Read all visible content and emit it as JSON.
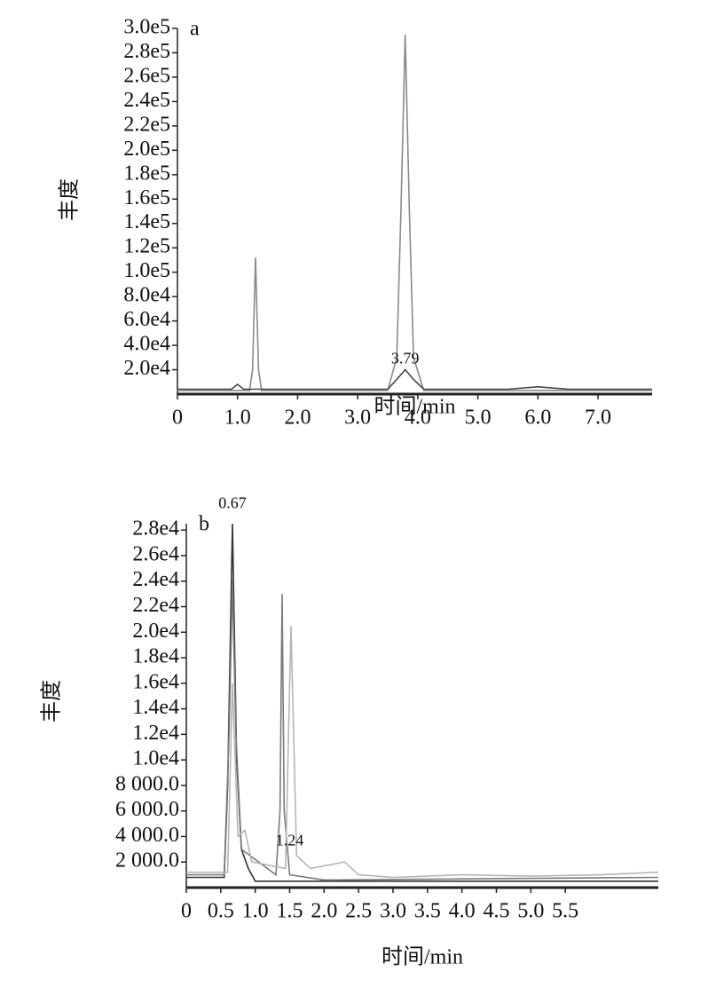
{
  "chart_data": [
    {
      "type": "line",
      "panel_label": "a",
      "xlabel": "时间/min",
      "ylabel": "丰度",
      "xlim": [
        0,
        7.9
      ],
      "ylim": [
        0,
        300000
      ],
      "xticks": [
        0,
        {
          "value": 1,
          "label": "1.0"
        },
        {
          "value": 2,
          "label": "2.0"
        },
        {
          "value": 3,
          "label": "3.0"
        },
        {
          "value": 4,
          "label": "4.0"
        },
        {
          "value": 5,
          "label": "5.0"
        },
        {
          "value": 6,
          "label": "6.0"
        },
        {
          "value": 7,
          "label": "7.0"
        }
      ],
      "yticks": [
        {
          "value": 20000,
          "label": "2.0e4"
        },
        {
          "value": 40000,
          "label": "4.0e4"
        },
        {
          "value": 60000,
          "label": "6.0e4"
        },
        {
          "value": 80000,
          "label": "8.0e4"
        },
        {
          "value": 100000,
          "label": "1.0e5"
        },
        {
          "value": 120000,
          "label": "1.2e5"
        },
        {
          "value": 140000,
          "label": "1.4e5"
        },
        {
          "value": 160000,
          "label": "1.6e5"
        },
        {
          "value": 180000,
          "label": "1.8e5"
        },
        {
          "value": 200000,
          "label": "2.0e5"
        },
        {
          "value": 220000,
          "label": "2.2e5"
        },
        {
          "value": 240000,
          "label": "2.4e5"
        },
        {
          "value": 260000,
          "label": "2.6e5"
        },
        {
          "value": 280000,
          "label": "2.8e5"
        },
        {
          "value": 300000,
          "label": "3.0e5"
        }
      ],
      "series": [
        {
          "color": "#8a8a8a",
          "x": [
            0,
            1.2,
            1.25,
            1.3,
            1.35,
            1.4,
            3.5,
            3.65,
            3.72,
            3.79,
            3.86,
            3.93,
            4.1,
            7.9
          ],
          "values": [
            3000,
            3000,
            20000,
            112000,
            20000,
            3000,
            3000,
            30000,
            150000,
            295000,
            150000,
            30000,
            3000,
            3000
          ]
        },
        {
          "color": "#444444",
          "x": [
            0,
            0.9,
            1.0,
            1.1,
            3.5,
            3.65,
            3.79,
            3.93,
            4.1,
            5.5,
            6.0,
            6.5,
            7.9
          ],
          "values": [
            4000,
            4000,
            8000,
            4000,
            4000,
            12000,
            20000,
            12000,
            4000,
            4000,
            6000,
            4000,
            4000
          ]
        }
      ],
      "annotations": [
        {
          "label": "3.79",
          "x": 3.79,
          "y": 28000
        }
      ]
    },
    {
      "type": "line",
      "panel_label": "b",
      "xlabel": "时间/min",
      "ylabel": "丰度",
      "xlim": [
        0,
        6.85
      ],
      "ylim": [
        0,
        28500
      ],
      "xticks": [
        0,
        0.5,
        {
          "value": 1,
          "label": "1.0"
        },
        1.5,
        {
          "value": 2,
          "label": "2.0"
        },
        2.5,
        {
          "value": 3,
          "label": "3.0"
        },
        3.5,
        {
          "value": 4,
          "label": "4.0"
        },
        4.5,
        {
          "value": 5,
          "label": "5.0"
        },
        5.5
      ],
      "yticks": [
        {
          "value": 2000,
          "label": "2 000.0"
        },
        {
          "value": 4000,
          "label": "4 000.0"
        },
        {
          "value": 6000,
          "label": "6 000.0"
        },
        {
          "value": 8000,
          "label": "8 000.0"
        },
        {
          "value": 10000,
          "label": "1.0e4"
        },
        {
          "value": 12000,
          "label": "1.2e4"
        },
        {
          "value": 14000,
          "label": "1.4e4"
        },
        {
          "value": 16000,
          "label": "1.6e4"
        },
        {
          "value": 18000,
          "label": "1.8e4"
        },
        {
          "value": 20000,
          "label": "2.0e4"
        },
        {
          "value": 22000,
          "label": "2.2e4"
        },
        {
          "value": 24000,
          "label": "2.4e4"
        },
        {
          "value": 26000,
          "label": "2.6e4"
        },
        {
          "value": 28000,
          "label": "2.8e4"
        }
      ],
      "series": [
        {
          "color": "#333333",
          "x": [
            0,
            0.55,
            0.6,
            0.67,
            0.73,
            0.8,
            0.9,
            1.0,
            6.85
          ],
          "values": [
            800,
            800,
            8000,
            28500,
            10000,
            3000,
            1500,
            500,
            500
          ]
        },
        {
          "color": "#7a7a7a",
          "x": [
            0,
            0.55,
            0.62,
            0.67,
            0.72,
            0.8,
            1.3,
            1.36,
            1.39,
            1.42,
            1.5,
            2.0,
            6.85
          ],
          "values": [
            1000,
            1000,
            12000,
            24000,
            12000,
            3000,
            1000,
            6000,
            23000,
            6000,
            1000,
            600,
            800
          ]
        },
        {
          "color": "#b5b5b5",
          "x": [
            0,
            0.6,
            0.67,
            0.75,
            0.85,
            0.95,
            1.44,
            1.52,
            1.6,
            1.8,
            2.3,
            2.5,
            3.0,
            4.0,
            5.0,
            6.0,
            6.85
          ],
          "values": [
            1200,
            1200,
            16000,
            4000,
            4500,
            2000,
            1500,
            20500,
            2500,
            1500,
            2000,
            1000,
            800,
            1000,
            900,
            1000,
            1200
          ]
        }
      ],
      "annotations": [
        {
          "label": "0.67",
          "x": 0.67,
          "y": 30000
        },
        {
          "label": "1.24",
          "x": 1.5,
          "y": 3600
        }
      ]
    }
  ]
}
